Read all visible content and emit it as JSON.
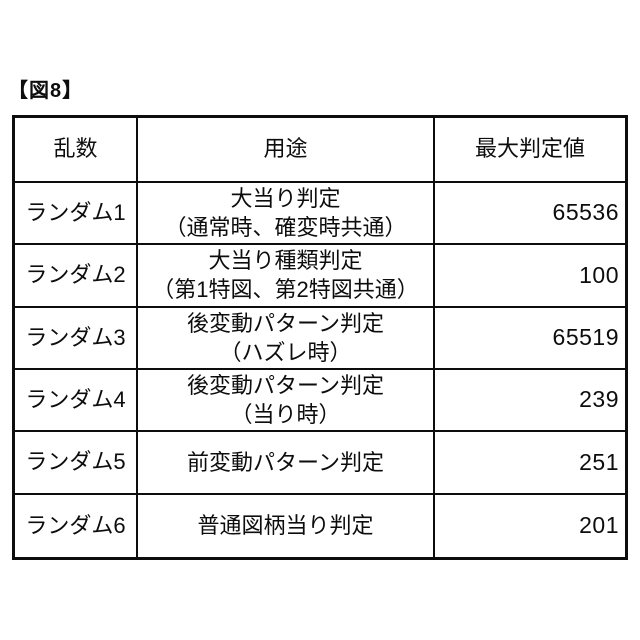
{
  "figure_label": "【図8】",
  "table": {
    "headers": {
      "random": "乱数",
      "purpose": "用途",
      "max_value": "最大判定値"
    },
    "rows": [
      {
        "name": "ランダム1",
        "purpose_line1": "大当り判定",
        "purpose_line2": "（通常時、確変時共通）",
        "value": "65536"
      },
      {
        "name": "ランダム2",
        "purpose_line1": "大当り種類判定",
        "purpose_line2": "（第1特図、第2特図共通）",
        "value": "100"
      },
      {
        "name": "ランダム3",
        "purpose_line1": "後変動パターン判定",
        "purpose_line2": "（ハズレ時）",
        "value": "65519"
      },
      {
        "name": "ランダム4",
        "purpose_line1": "後変動パターン判定",
        "purpose_line2": "（当り時）",
        "value": "239"
      },
      {
        "name": "ランダム5",
        "purpose_line1": "前変動パターン判定",
        "purpose_line2": "",
        "value": "251"
      },
      {
        "name": "ランダム6",
        "purpose_line1": "普通図柄当り判定",
        "purpose_line2": "",
        "value": "201"
      }
    ]
  },
  "colors": {
    "ink": "#0d0d0d",
    "background": "#ffffff"
  }
}
